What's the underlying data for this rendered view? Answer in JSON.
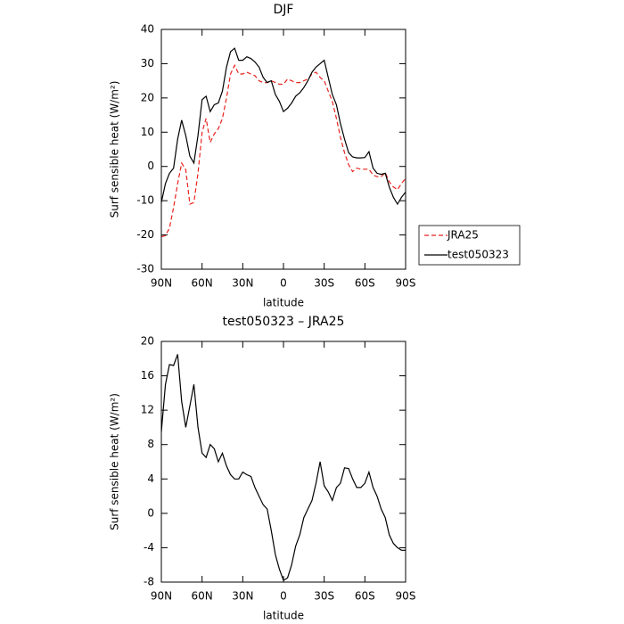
{
  "chart_data": [
    {
      "type": "line",
      "title": "DJF",
      "xlabel": "latitude",
      "ylabel": "Surf sensible heat (W/m²)",
      "x": [
        90,
        87,
        84,
        81,
        78,
        75,
        72,
        69,
        66,
        63,
        60,
        57,
        54,
        51,
        48,
        45,
        42,
        39,
        36,
        33,
        30,
        27,
        24,
        21,
        18,
        15,
        12,
        9,
        6,
        3,
        0,
        -3,
        -6,
        -9,
        -12,
        -15,
        -18,
        -21,
        -24,
        -27,
        -30,
        -33,
        -36,
        -39,
        -42,
        -45,
        -48,
        -51,
        -54,
        -57,
        -60,
        -63,
        -66,
        -69,
        -72,
        -75,
        -78,
        -81,
        -84,
        -87,
        -90
      ],
      "series": [
        {
          "name": "JRA25",
          "color": "#e8231f",
          "dash": true,
          "values": [
            -20.5,
            -20.2,
            -18,
            -12,
            -5,
            1,
            -1,
            -11,
            -10.5,
            -2,
            10,
            14,
            7,
            9.5,
            11,
            14,
            20,
            27,
            29.5,
            27,
            27,
            27.5,
            27,
            26.5,
            25,
            24.5,
            24.5,
            25,
            24.5,
            24,
            24,
            25.5,
            25,
            24.5,
            24.5,
            25,
            25.5,
            27,
            27.5,
            26,
            25,
            22,
            19,
            14,
            8.5,
            4,
            0.5,
            -1.5,
            -0.5,
            -0.8,
            -0.8,
            -0.8,
            -2.5,
            -3,
            -3,
            -1.8,
            -4.5,
            -6,
            -6.8,
            -5,
            -3.5
          ]
        },
        {
          "name": "test050323",
          "color": "#000000",
          "dash": false,
          "values": [
            -10.5,
            -5,
            -2,
            -0.5,
            8,
            13.5,
            9,
            3,
            1,
            9,
            19.5,
            20.5,
            16,
            18,
            18.5,
            22,
            29,
            33.5,
            34.5,
            31,
            31,
            32,
            31.5,
            30.5,
            29,
            26,
            24.5,
            25,
            21,
            19,
            16,
            17,
            18.5,
            20.5,
            21.5,
            23,
            25,
            27.5,
            29,
            30,
            31,
            26,
            21,
            18,
            12.5,
            8,
            4,
            2.8,
            2.5,
            2.5,
            2.6,
            4.3,
            -0.5,
            -2,
            -2.3,
            -2,
            -6,
            -9,
            -11,
            -9,
            -7.5
          ]
        }
      ],
      "xlim": [
        90,
        -90
      ],
      "xticks": [
        {
          "value": 90,
          "label": "90N"
        },
        {
          "value": 60,
          "label": "60N"
        },
        {
          "value": 30,
          "label": "30N"
        },
        0,
        {
          "value": -30,
          "label": "30S"
        },
        {
          "value": -60,
          "label": "60S"
        },
        {
          "value": -90,
          "label": "90S"
        }
      ],
      "ylim": [
        -30,
        40
      ],
      "yticks": [
        -30,
        -20,
        -10,
        0,
        10,
        20,
        30,
        40
      ],
      "legend": "right"
    },
    {
      "type": "line",
      "title": "test050323 – JRA25",
      "xlabel": "latitude",
      "ylabel": "Surf sensible heat (W/m²)",
      "x": [
        90,
        87,
        84,
        81,
        78,
        75,
        72,
        69,
        66,
        63,
        60,
        57,
        54,
        51,
        48,
        45,
        42,
        39,
        36,
        33,
        30,
        27,
        24,
        21,
        18,
        15,
        12,
        9,
        6,
        3,
        0,
        -3,
        -6,
        -9,
        -12,
        -15,
        -18,
        -21,
        -24,
        -27,
        -30,
        -33,
        -36,
        -39,
        -42,
        -45,
        -48,
        -51,
        -54,
        -57,
        -60,
        -63,
        -66,
        -69,
        -72,
        -75,
        -78,
        -81,
        -84,
        -87,
        -90
      ],
      "series": [
        {
          "color": "#000000",
          "dash": false,
          "values": [
            9.5,
            15,
            17.3,
            17.2,
            18.5,
            13,
            10,
            12.5,
            15,
            10,
            7,
            6.5,
            8,
            7.5,
            6,
            7,
            5.5,
            4.5,
            4,
            4,
            4.8,
            4.5,
            4.3,
            3,
            2,
            1,
            0.5,
            -2,
            -4.8,
            -6.5,
            -7.8,
            -7.5,
            -6,
            -3.8,
            -2.5,
            -0.5,
            0.5,
            1.5,
            3.5,
            6,
            3.2,
            2.5,
            1.5,
            3,
            3.5,
            5.3,
            5.2,
            4,
            3,
            3,
            3.5,
            4.8,
            3,
            2,
            0.5,
            -0.5,
            -2.5,
            -3.5,
            -4,
            -4.3,
            -4.3
          ]
        }
      ],
      "xlim": [
        90,
        -90
      ],
      "xticks": [
        {
          "value": 90,
          "label": "90N"
        },
        {
          "value": 60,
          "label": "60N"
        },
        {
          "value": 30,
          "label": "30N"
        },
        0,
        {
          "value": -30,
          "label": "30S"
        },
        {
          "value": -60,
          "label": "60S"
        },
        {
          "value": -90,
          "label": "90S"
        }
      ],
      "ylim": [
        -8,
        20
      ],
      "yticks": [
        -8,
        -4,
        0,
        4,
        8,
        12,
        16,
        20
      ]
    }
  ]
}
